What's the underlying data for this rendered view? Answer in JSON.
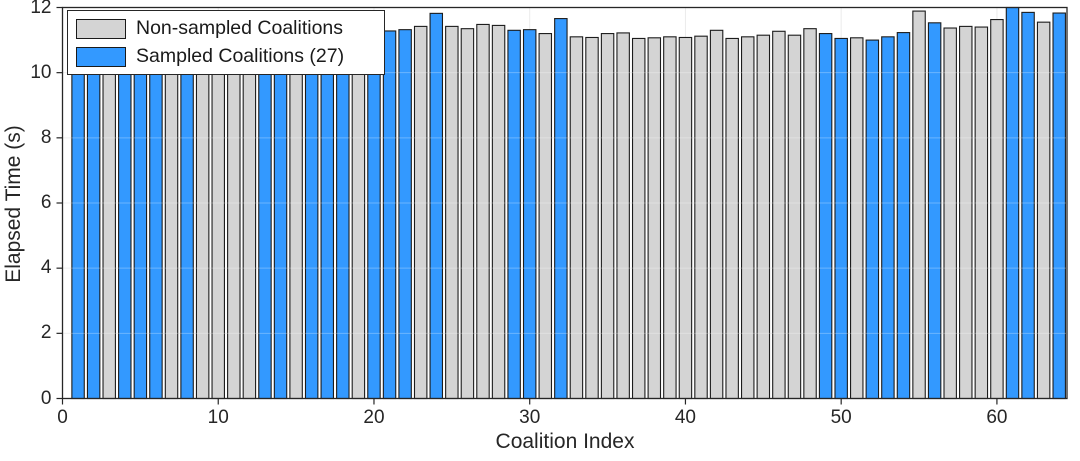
{
  "figure": {
    "background": "#ffffff",
    "axis_color": "#262626",
    "grid_color": "#ebebeb"
  },
  "colors": {
    "sampled": "#3399ff",
    "non_sampled": "#d4d4d4",
    "bar_edge": "#1c1c1c"
  },
  "chart_data": {
    "type": "bar",
    "title": "",
    "xlabel": "Coalition Index",
    "ylabel": "Elapsed Time (s)",
    "xlim": [
      0,
      64.5
    ],
    "ylim": [
      0,
      12
    ],
    "x_ticks": [
      0,
      10,
      20,
      30,
      40,
      50,
      60
    ],
    "y_ticks": [
      0,
      2,
      4,
      6,
      8,
      10,
      12
    ],
    "grid": true,
    "legend": {
      "position": "top-left",
      "entries": [
        {
          "label": "Non-sampled Coalitions",
          "color": "#d4d4d4"
        },
        {
          "label": "Sampled Coalitions (27)",
          "color": "#3399ff"
        }
      ]
    },
    "sampled_count": 27,
    "bars": [
      {
        "i": 1,
        "t": 11.3,
        "sampled": true
      },
      {
        "i": 2,
        "t": 11.32,
        "sampled": true
      },
      {
        "i": 3,
        "t": 11.28,
        "sampled": false
      },
      {
        "i": 4,
        "t": 11.3,
        "sampled": true
      },
      {
        "i": 5,
        "t": 11.33,
        "sampled": true
      },
      {
        "i": 6,
        "t": 11.3,
        "sampled": true
      },
      {
        "i": 7,
        "t": 11.28,
        "sampled": false
      },
      {
        "i": 8,
        "t": 11.31,
        "sampled": true
      },
      {
        "i": 9,
        "t": 11.3,
        "sampled": false
      },
      {
        "i": 10,
        "t": 11.29,
        "sampled": false
      },
      {
        "i": 11,
        "t": 11.31,
        "sampled": false
      },
      {
        "i": 12,
        "t": 11.3,
        "sampled": false
      },
      {
        "i": 13,
        "t": 11.32,
        "sampled": true
      },
      {
        "i": 14,
        "t": 11.3,
        "sampled": true
      },
      {
        "i": 15,
        "t": 11.28,
        "sampled": false
      },
      {
        "i": 16,
        "t": 11.31,
        "sampled": true
      },
      {
        "i": 17,
        "t": 11.3,
        "sampled": true
      },
      {
        "i": 18,
        "t": 11.32,
        "sampled": true
      },
      {
        "i": 19,
        "t": 11.29,
        "sampled": false
      },
      {
        "i": 20,
        "t": 11.3,
        "sampled": true
      },
      {
        "i": 21,
        "t": 11.28,
        "sampled": true
      },
      {
        "i": 22,
        "t": 11.32,
        "sampled": true
      },
      {
        "i": 23,
        "t": 11.42,
        "sampled": false
      },
      {
        "i": 24,
        "t": 11.82,
        "sampled": true
      },
      {
        "i": 25,
        "t": 11.42,
        "sampled": false
      },
      {
        "i": 26,
        "t": 11.35,
        "sampled": false
      },
      {
        "i": 27,
        "t": 11.48,
        "sampled": false
      },
      {
        "i": 28,
        "t": 11.45,
        "sampled": false
      },
      {
        "i": 29,
        "t": 11.3,
        "sampled": true
      },
      {
        "i": 30,
        "t": 11.32,
        "sampled": true
      },
      {
        "i": 31,
        "t": 11.2,
        "sampled": false
      },
      {
        "i": 32,
        "t": 11.66,
        "sampled": true
      },
      {
        "i": 33,
        "t": 11.1,
        "sampled": false
      },
      {
        "i": 34,
        "t": 11.08,
        "sampled": false
      },
      {
        "i": 35,
        "t": 11.2,
        "sampled": false
      },
      {
        "i": 36,
        "t": 11.22,
        "sampled": false
      },
      {
        "i": 37,
        "t": 11.05,
        "sampled": false
      },
      {
        "i": 38,
        "t": 11.07,
        "sampled": false
      },
      {
        "i": 39,
        "t": 11.1,
        "sampled": false
      },
      {
        "i": 40,
        "t": 11.08,
        "sampled": false
      },
      {
        "i": 41,
        "t": 11.12,
        "sampled": false
      },
      {
        "i": 42,
        "t": 11.3,
        "sampled": false
      },
      {
        "i": 43,
        "t": 11.05,
        "sampled": false
      },
      {
        "i": 44,
        "t": 11.1,
        "sampled": false
      },
      {
        "i": 45,
        "t": 11.15,
        "sampled": false
      },
      {
        "i": 46,
        "t": 11.27,
        "sampled": false
      },
      {
        "i": 47,
        "t": 11.15,
        "sampled": false
      },
      {
        "i": 48,
        "t": 11.35,
        "sampled": false
      },
      {
        "i": 49,
        "t": 11.2,
        "sampled": true
      },
      {
        "i": 50,
        "t": 11.05,
        "sampled": true
      },
      {
        "i": 51,
        "t": 11.07,
        "sampled": false
      },
      {
        "i": 52,
        "t": 11.0,
        "sampled": true
      },
      {
        "i": 53,
        "t": 11.1,
        "sampled": true
      },
      {
        "i": 54,
        "t": 11.23,
        "sampled": true
      },
      {
        "i": 55,
        "t": 11.89,
        "sampled": false
      },
      {
        "i": 56,
        "t": 11.53,
        "sampled": true
      },
      {
        "i": 57,
        "t": 11.37,
        "sampled": false
      },
      {
        "i": 58,
        "t": 11.42,
        "sampled": false
      },
      {
        "i": 59,
        "t": 11.4,
        "sampled": false
      },
      {
        "i": 60,
        "t": 11.63,
        "sampled": false
      },
      {
        "i": 61,
        "t": 12.0,
        "sampled": true
      },
      {
        "i": 62,
        "t": 11.85,
        "sampled": true
      },
      {
        "i": 63,
        "t": 11.55,
        "sampled": false
      },
      {
        "i": 64,
        "t": 11.83,
        "sampled": true
      }
    ]
  }
}
